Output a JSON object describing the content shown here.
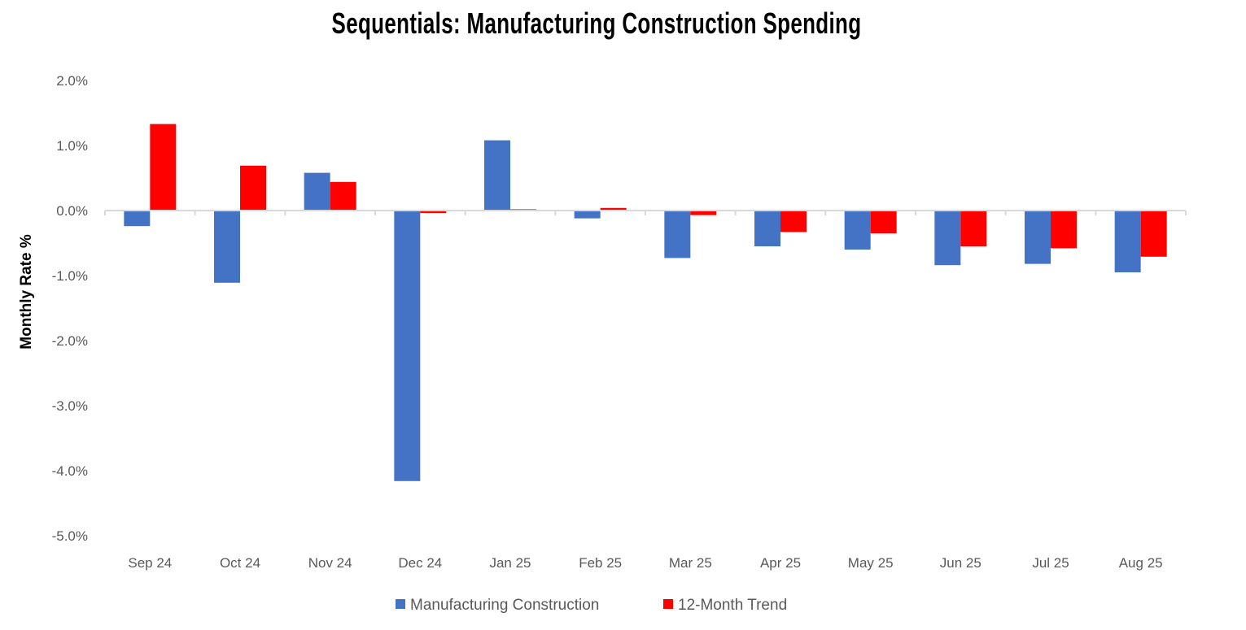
{
  "chart_data": {
    "type": "bar",
    "title": "Sequentials: Manufacturing Construction Spending",
    "xlabel": "",
    "ylabel": "Monthly Rate %",
    "ylim": [
      -5.0,
      2.0
    ],
    "yticks": [
      "2.0%",
      "1.0%",
      "0.0%",
      "-1.0%",
      "-2.0%",
      "-3.0%",
      "-4.0%",
      "-5.0%"
    ],
    "grid": false,
    "legend_position": "bottom",
    "categories": [
      "Sep 24",
      "Oct 24",
      "Nov 24",
      "Dec 24",
      "Jan 25",
      "Feb 25",
      "Mar 25",
      "Apr 25",
      "May 25",
      "Jun 25",
      "Jul 25",
      "Aug 25"
    ],
    "series": [
      {
        "name": "Manufacturing Construction",
        "color": "#4472C4",
        "values": [
          -0.24,
          -1.11,
          0.58,
          -4.16,
          1.08,
          -0.12,
          -0.73,
          -0.55,
          -0.6,
          -0.84,
          -0.82,
          -0.95
        ]
      },
      {
        "name": "12-Month Trend",
        "color": "#FF0000",
        "values": [
          1.33,
          0.69,
          0.44,
          -0.04,
          0.02,
          0.04,
          -0.07,
          -0.33,
          -0.35,
          -0.55,
          -0.58,
          -0.71
        ]
      }
    ]
  }
}
